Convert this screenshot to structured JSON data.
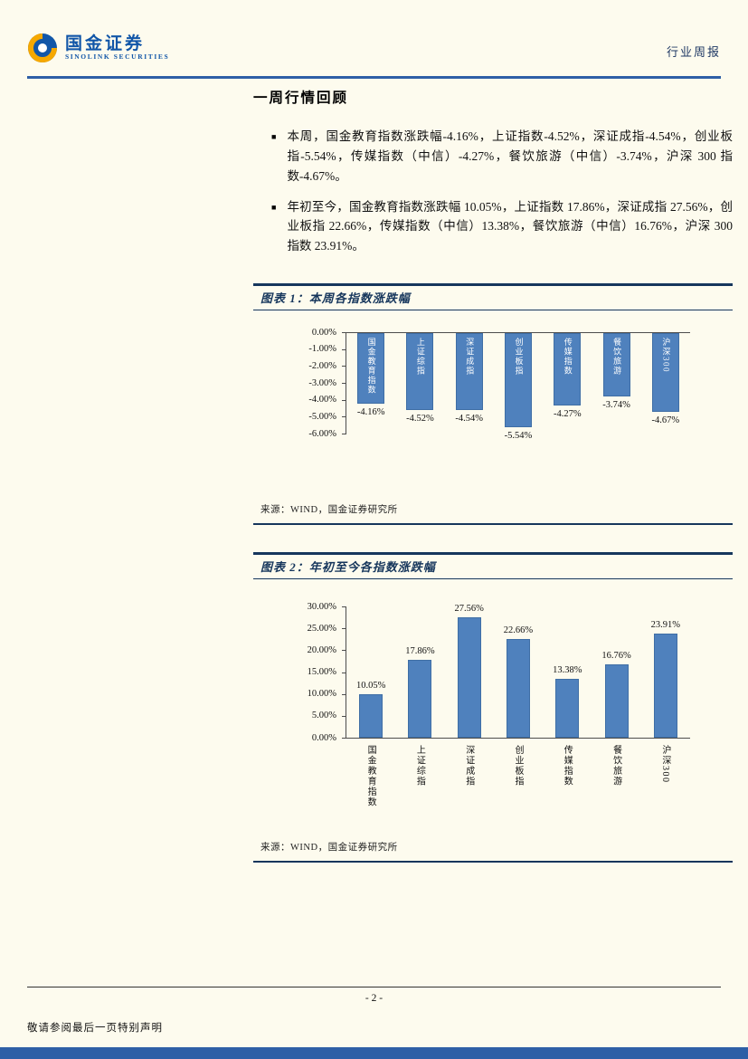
{
  "page": {
    "brand": {
      "name": "国金证券",
      "subtitle": "SINOLINK SECURITIES"
    },
    "report_type": "行业周报",
    "section_title": "一周行情回顾",
    "bullet_marker": "■",
    "bullets": [
      "本周，国金教育指数涨跌幅-4.16%，上证指数-4.52%，深证成指-4.54%，创业板指-5.54%，传媒指数（中信）-4.27%，餐饮旅游（中信）-3.74%，沪深 300 指数-4.67%。",
      "年初至今，国金教育指数涨跌幅 10.05%，上证指数 17.86%，深证成指 27.56%，创业板指 22.66%，传媒指数（中信）13.38%，餐饮旅游（中信）16.76%，沪深 300 指数 23.91%。"
    ],
    "source_note": "来源：WIND，国金证券研究所",
    "footer": {
      "disclaimer": "敬请参阅最后一页特别声明",
      "page_number": "- 2 -"
    }
  },
  "chart_data": [
    {
      "type": "bar",
      "title": "图表 1：本周各指数涨跌幅",
      "categories": [
        "国金教育指数",
        "上证综指",
        "深证成指",
        "创业板指",
        "传媒指数",
        "餐饮旅游",
        "沪深300"
      ],
      "values": [
        -4.16,
        -4.52,
        -4.54,
        -5.54,
        -4.27,
        -3.74,
        -4.67
      ],
      "labels": [
        "-4.16%",
        "-4.52%",
        "-4.54%",
        "-5.54%",
        "-4.27%",
        "-3.74%",
        "-4.67%"
      ],
      "ylim": [
        -6,
        0
      ],
      "yticks": [
        "0.00%",
        "-1.00%",
        "-2.00%",
        "-3.00%",
        "-4.00%",
        "-5.00%",
        "-6.00%"
      ],
      "xlabel": "",
      "ylabel": "",
      "grid": false,
      "legend": "none",
      "bar_color": "#4f81bd",
      "source": "来源：WIND，国金证券研究所"
    },
    {
      "type": "bar",
      "title": "图表 2：年初至今各指数涨跌幅",
      "categories": [
        "国金教育指数",
        "上证综指",
        "深证成指",
        "创业板指",
        "传媒指数",
        "餐饮旅游",
        "沪深300"
      ],
      "values": [
        10.05,
        17.86,
        27.56,
        22.66,
        13.38,
        16.76,
        23.91
      ],
      "labels": [
        "10.05%",
        "17.86%",
        "27.56%",
        "22.66%",
        "13.38%",
        "16.76%",
        "23.91%"
      ],
      "ylim": [
        0,
        30
      ],
      "yticks": [
        "30.00%",
        "25.00%",
        "20.00%",
        "15.00%",
        "10.00%",
        "5.00%",
        "0.00%"
      ],
      "xlabel": "",
      "ylabel": "",
      "grid": false,
      "legend": "none",
      "bar_color": "#4f81bd",
      "source": "来源：WIND，国金证券研究所"
    }
  ]
}
